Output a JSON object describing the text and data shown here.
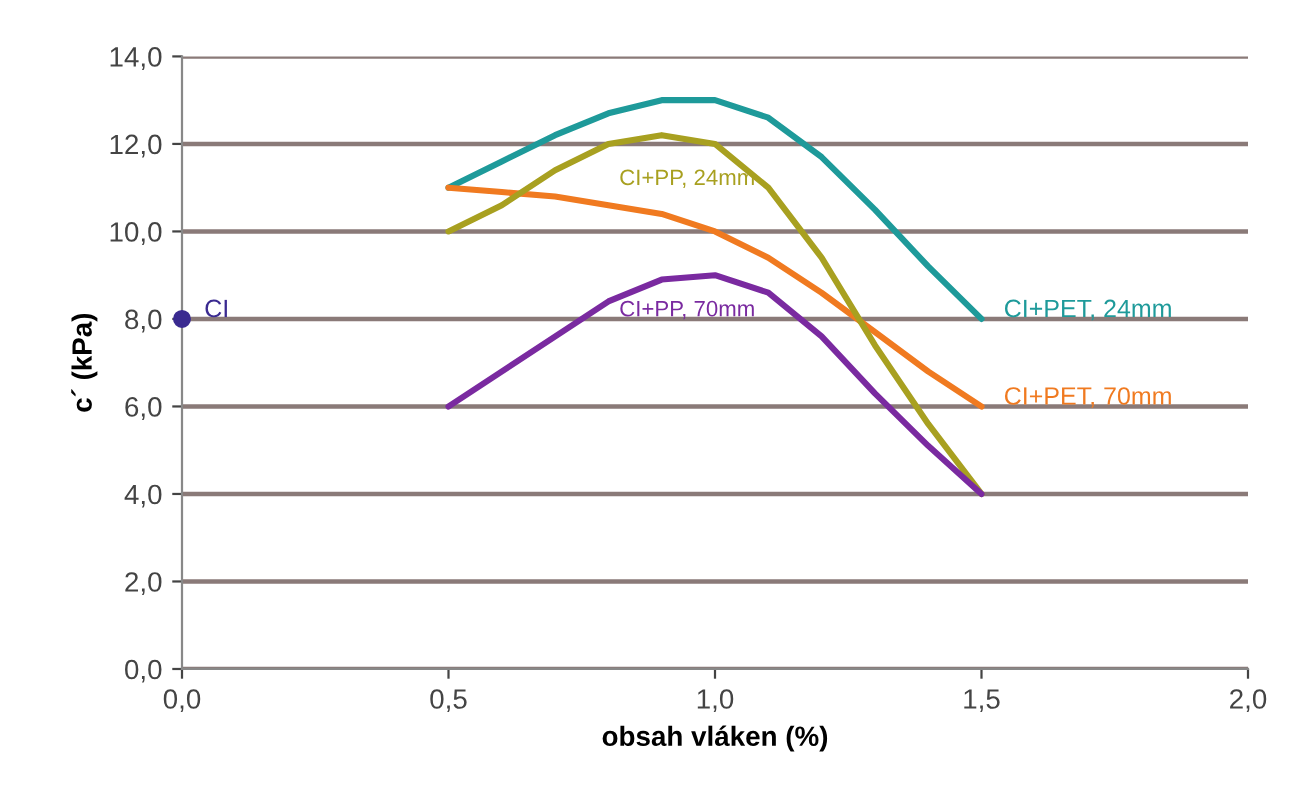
{
  "chart_data": {
    "type": "line",
    "xlabel": "obsah vláken (%)",
    "ylabel": "c´ (kPa)",
    "xlim": [
      0,
      2
    ],
    "ylim": [
      0,
      14
    ],
    "xticks": [
      {
        "value": 0,
        "label": "0,0"
      },
      {
        "value": 0.5,
        "label": "0,5"
      },
      {
        "value": 1,
        "label": "1,0"
      },
      {
        "value": 1.5,
        "label": "1,5"
      },
      {
        "value": 2,
        "label": "2,0"
      }
    ],
    "yticks": [
      {
        "value": 0,
        "label": "0,0"
      },
      {
        "value": 2,
        "label": "2,0"
      },
      {
        "value": 4,
        "label": "4,0"
      },
      {
        "value": 6,
        "label": "6,0"
      },
      {
        "value": 8,
        "label": "8,0"
      },
      {
        "value": 10,
        "label": "10,0"
      },
      {
        "value": 12,
        "label": "12,0"
      },
      {
        "value": 14,
        "label": "14,0"
      }
    ],
    "grid": "y",
    "line_style": "solid",
    "marker": "none",
    "series": [
      {
        "color": "#1e9a9a",
        "x": [
          0.5,
          0.6,
          0.7,
          0.8,
          0.9,
          1.0,
          1.1,
          1.2,
          1.3,
          1.4,
          1.5
        ],
        "values": [
          11.0,
          11.6,
          12.2,
          12.7,
          13.0,
          13.0,
          12.6,
          11.7,
          10.5,
          9.2,
          8.0
        ]
      },
      {
        "color": "#f07a20",
        "x": [
          0.5,
          0.6,
          0.7,
          0.8,
          0.9,
          1.0,
          1.1,
          1.2,
          1.3,
          1.4,
          1.5
        ],
        "values": [
          11.0,
          10.9,
          10.8,
          10.6,
          10.4,
          10.0,
          9.4,
          8.6,
          7.7,
          6.8,
          6.0
        ]
      },
      {
        "color": "#a8a020",
        "x": [
          0.5,
          0.6,
          0.7,
          0.8,
          0.9,
          1.0,
          1.1,
          1.2,
          1.3,
          1.4,
          1.5
        ],
        "values": [
          10.0,
          10.6,
          11.4,
          12.0,
          12.2,
          12.0,
          11.0,
          9.4,
          7.4,
          5.6,
          4.0
        ]
      },
      {
        "color": "#7a2aa0",
        "x": [
          0.5,
          0.6,
          0.7,
          0.8,
          0.9,
          1.0,
          1.1,
          1.2,
          1.3,
          1.4,
          1.5
        ],
        "values": [
          6.0,
          6.8,
          7.6,
          8.4,
          8.9,
          9.0,
          8.6,
          7.6,
          6.3,
          5.1,
          4.0
        ]
      },
      {
        "type": "scatter",
        "marker": "circle",
        "color": "#3a2a90",
        "x": [
          0
        ],
        "values": [
          8
        ]
      }
    ],
    "annotations": [
      {
        "text": "CI+PET, 24mm",
        "x": 1.5,
        "y": 8
      },
      {
        "text": "CI+PET, 70mm",
        "x": 1.5,
        "y": 6
      },
      {
        "text": "CI+PP, 24mm",
        "x": 1.0,
        "y": 12
      },
      {
        "text": "CI+PP, 70mm",
        "x": 1.0,
        "y": 9
      },
      {
        "text": "CI",
        "x": 0,
        "y": 8
      }
    ]
  }
}
